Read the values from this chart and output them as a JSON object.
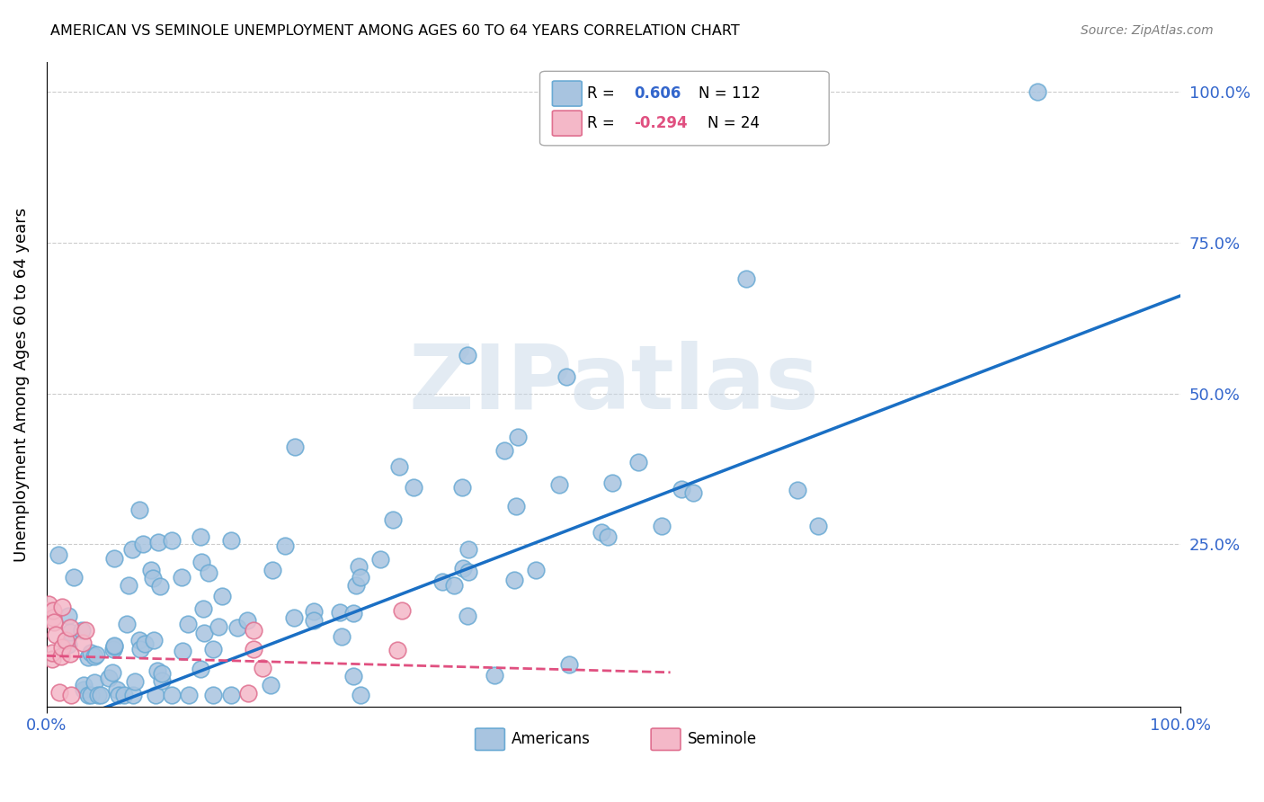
{
  "title": "AMERICAN VS SEMINOLE UNEMPLOYMENT AMONG AGES 60 TO 64 YEARS CORRELATION CHART",
  "source": "Source: ZipAtlas.com",
  "ylabel": "Unemployment Among Ages 60 to 64 years",
  "american_color": "#a8c4e0",
  "american_edge": "#6aaad4",
  "seminole_color": "#f4b8c8",
  "seminole_edge": "#e07090",
  "trend_american_color": "#1a6fc4",
  "trend_seminole_color": "#e05080",
  "watermark": "ZIPatlas",
  "slope_am": 0.72,
  "intercept_am": -0.058,
  "slope_sem": -0.05,
  "intercept_sem": 0.065
}
